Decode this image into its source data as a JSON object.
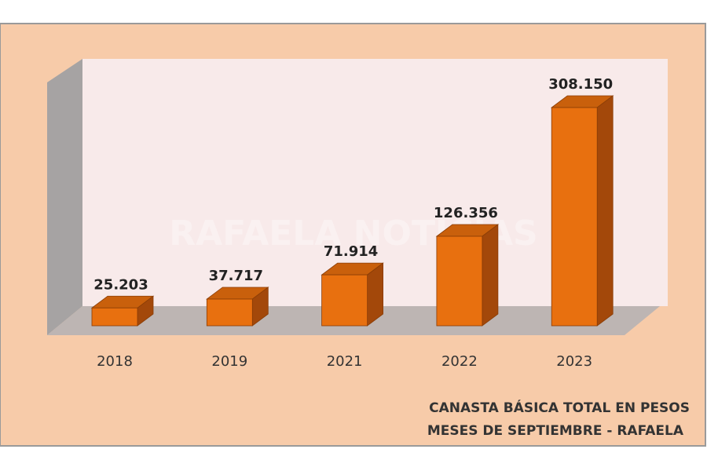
{
  "chart_data": {
    "type": "bar3d",
    "title": "CANASTA BÁSICA TOTAL EN PESOS",
    "subtitle": "MESES DE SEPTIEMBRE - RAFAELA",
    "watermark": "RAFAELA NOTICIAS",
    "categories": [
      "2018",
      "2019",
      "2021",
      "2022",
      "2023"
    ],
    "values": [
      25203,
      37717,
      71914,
      126356,
      308150
    ],
    "value_labels": [
      "25.203",
      "37.717",
      "71.914",
      "126.356",
      "308.150"
    ],
    "color": "#e8700f"
  }
}
